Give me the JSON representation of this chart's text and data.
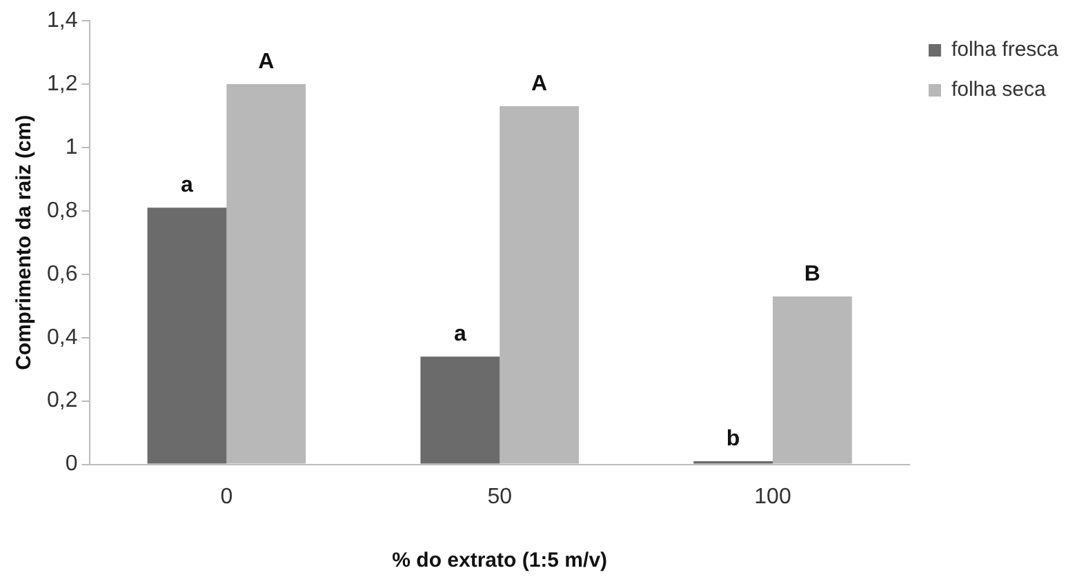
{
  "chart_data": {
    "type": "bar",
    "xlabel": "% do extrato (1:5 m/v)",
    "ylabel": "Comprimento da raiz (cm)",
    "categories": [
      "0",
      "50",
      "100"
    ],
    "series": [
      {
        "name": "folha fresca",
        "color": "#6b6b6b",
        "values": [
          0.81,
          0.34,
          0.01
        ]
      },
      {
        "name": "folha seca",
        "color": "#b8b8b8",
        "values": [
          1.2,
          1.13,
          0.53
        ]
      }
    ],
    "ylim": [
      0,
      1.4
    ],
    "yticks": [
      {
        "value": 0,
        "label": "0"
      },
      {
        "value": 0.2,
        "label": "0,2"
      },
      {
        "value": 0.4,
        "label": "0,4"
      },
      {
        "value": 0.6,
        "label": "0,6"
      },
      {
        "value": 0.8,
        "label": "0,8"
      },
      {
        "value": 1,
        "label": "1"
      },
      {
        "value": 1.2,
        "label": "1,2"
      },
      {
        "value": 1.4,
        "label": "1,4"
      }
    ],
    "grid": false,
    "legend": "right",
    "annotations": [
      {
        "text": "a",
        "x": "0",
        "y": 0.81
      },
      {
        "text": "A",
        "x": "0",
        "y": 1.2
      },
      {
        "text": "a",
        "x": "50",
        "y": 0.34
      },
      {
        "text": "A",
        "x": "50",
        "y": 1.13
      },
      {
        "text": "b",
        "x": "100",
        "y": 0.01
      },
      {
        "text": "B",
        "x": "100",
        "y": 0.53
      }
    ]
  }
}
